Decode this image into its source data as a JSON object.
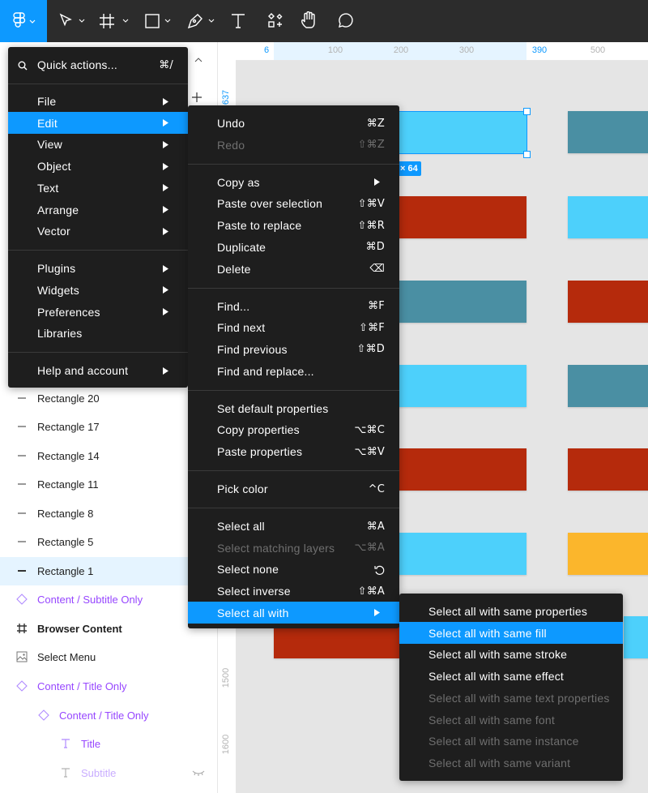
{
  "rulers": {
    "top": [
      {
        "label": "6",
        "active": true
      },
      {
        "label": "100",
        "active": false
      },
      {
        "label": "200",
        "active": false
      },
      {
        "label": "300",
        "active": false
      },
      {
        "label": "390",
        "active": true
      },
      {
        "label": "500",
        "active": false
      }
    ],
    "left": [
      {
        "label": "637",
        "active": true
      },
      {
        "label": "1500",
        "active": false
      },
      {
        "label": "1600",
        "active": false
      }
    ]
  },
  "canvas": {
    "selection_badge": "× 64"
  },
  "layers": [
    {
      "label": "Rectangle 20",
      "icon": "line",
      "indent": 0
    },
    {
      "label": "Rectangle 17",
      "icon": "line",
      "indent": 0
    },
    {
      "label": "Rectangle 14",
      "icon": "line",
      "indent": 0
    },
    {
      "label": "Rectangle 11",
      "icon": "line",
      "indent": 0
    },
    {
      "label": "Rectangle 8",
      "icon": "line",
      "indent": 0
    },
    {
      "label": "Rectangle 5",
      "icon": "line",
      "indent": 0
    },
    {
      "label": "Rectangle 1",
      "icon": "line",
      "indent": 0,
      "selected": true
    },
    {
      "label": "Content / Subtitle Only",
      "icon": "component",
      "indent": 0,
      "style": "component"
    },
    {
      "label": "Browser Content",
      "icon": "frame",
      "indent": 0,
      "style": "bold"
    },
    {
      "label": "Select Menu",
      "icon": "image",
      "indent": 0
    },
    {
      "label": "Content / Title Only",
      "icon": "component",
      "indent": 0,
      "style": "component"
    },
    {
      "label": "Content / Title Only",
      "icon": "component",
      "indent": 1,
      "style": "component"
    },
    {
      "label": "Title",
      "icon": "text",
      "indent": 2,
      "style": "component"
    },
    {
      "label": "Subtitle",
      "icon": "text",
      "indent": 2,
      "style": "component-muted",
      "hidden": true
    }
  ],
  "main_menu": {
    "quick_actions": {
      "label": "Quick actions...",
      "shortcut": "⌘/"
    },
    "groups": [
      [
        {
          "label": "File",
          "submenu": true
        },
        {
          "label": "Edit",
          "submenu": true,
          "highlighted": true
        },
        {
          "label": "View",
          "submenu": true
        },
        {
          "label": "Object",
          "submenu": true
        },
        {
          "label": "Text",
          "submenu": true
        },
        {
          "label": "Arrange",
          "submenu": true
        },
        {
          "label": "Vector",
          "submenu": true
        }
      ],
      [
        {
          "label": "Plugins",
          "submenu": true
        },
        {
          "label": "Widgets",
          "submenu": true
        },
        {
          "label": "Preferences",
          "submenu": true
        },
        {
          "label": "Libraries"
        }
      ],
      [
        {
          "label": "Help and account",
          "submenu": true
        }
      ]
    ]
  },
  "edit_menu": {
    "groups": [
      [
        {
          "label": "Undo",
          "shortcut": "⌘Z"
        },
        {
          "label": "Redo",
          "shortcut": "⇧⌘Z",
          "disabled": true
        }
      ],
      [
        {
          "label": "Copy as",
          "submenu": true
        },
        {
          "label": "Paste over selection",
          "shortcut": "⇧⌘V"
        },
        {
          "label": "Paste to replace",
          "shortcut": "⇧⌘R"
        },
        {
          "label": "Duplicate",
          "shortcut": "⌘D"
        },
        {
          "label": "Delete",
          "shortcut": "⌫"
        }
      ],
      [
        {
          "label": "Find...",
          "shortcut": "⌘F"
        },
        {
          "label": "Find next",
          "shortcut": "⇧⌘F"
        },
        {
          "label": "Find previous",
          "shortcut": "⇧⌘D"
        },
        {
          "label": "Find and replace..."
        }
      ],
      [
        {
          "label": "Set default properties"
        },
        {
          "label": "Copy properties",
          "shortcut": "⌥⌘C"
        },
        {
          "label": "Paste properties",
          "shortcut": "⌥⌘V"
        }
      ],
      [
        {
          "label": "Pick color",
          "shortcut": "^C"
        }
      ],
      [
        {
          "label": "Select all",
          "shortcut": "⌘A"
        },
        {
          "label": "Select matching layers",
          "shortcut": "⌥⌘A",
          "disabled": true
        },
        {
          "label": "Select none",
          "shortcut_icon": "reset"
        },
        {
          "label": "Select inverse",
          "shortcut": "⇧⌘A"
        },
        {
          "label": "Select all with",
          "submenu": true,
          "highlighted": true
        }
      ]
    ]
  },
  "select_all_with_menu": {
    "groups": [
      [
        {
          "label": "Select all with same properties"
        },
        {
          "label": "Select all with same fill",
          "highlighted": true
        },
        {
          "label": "Select all with same stroke"
        },
        {
          "label": "Select all with same effect"
        },
        {
          "label": "Select all with same text properties",
          "disabled": true
        },
        {
          "label": "Select all with same font",
          "disabled": true
        },
        {
          "label": "Select all with same instance",
          "disabled": true
        },
        {
          "label": "Select all with same variant",
          "disabled": true
        }
      ]
    ]
  }
}
